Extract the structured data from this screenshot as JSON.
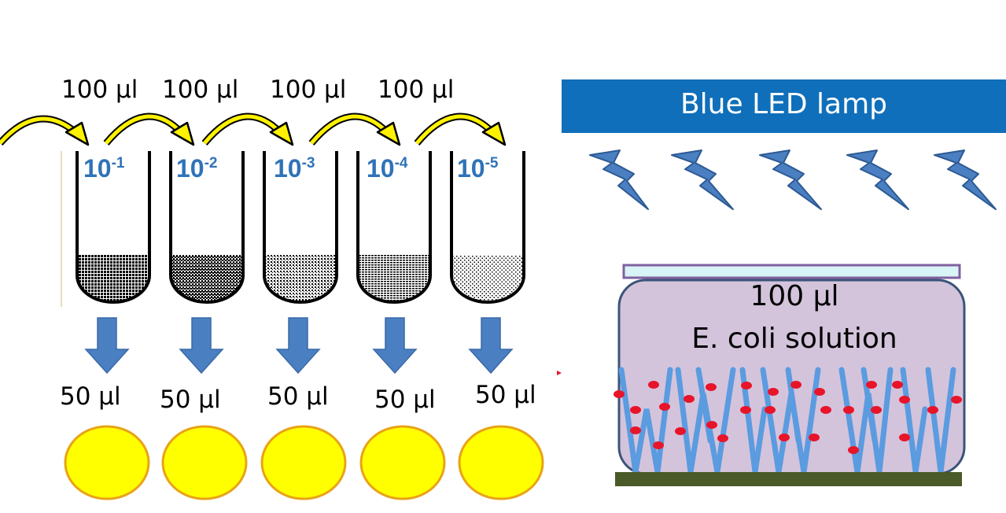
{
  "serial_dilution": {
    "transfer_volumes": [
      "100 µl",
      "100 µl",
      "100 µl",
      "100 µl"
    ],
    "tubes": [
      {
        "base": "10",
        "exp": "-1"
      },
      {
        "base": "10",
        "exp": "-2"
      },
      {
        "base": "10",
        "exp": "-3"
      },
      {
        "base": "10",
        "exp": "-4"
      },
      {
        "base": "10",
        "exp": "-5"
      }
    ],
    "plated_volumes": [
      "50 µl",
      "50 µl",
      "50 µl",
      "50 µl",
      "50 µl"
    ]
  },
  "lamp": {
    "label": "Blue LED lamp"
  },
  "well": {
    "volume": "100 µl",
    "content": "E. coli solution"
  },
  "colors": {
    "lamp_blue": "#0f6fba",
    "arrow_blue": "#4a7fc1",
    "bolt_blue": "#4a7fc1",
    "yellow": "#ffff00",
    "yellow_outline": "#e8a317",
    "well_fill": "#d3c4dc",
    "well_outline": "#3b5578",
    "base_green": "#4a5a28",
    "lid_fill": "#d8f4f6",
    "lid_outline": "#8060a0",
    "bacteria_red": "#e8142a",
    "fiber_blue": "#5b9be0",
    "tube_label_blue": "#2f73b8"
  }
}
